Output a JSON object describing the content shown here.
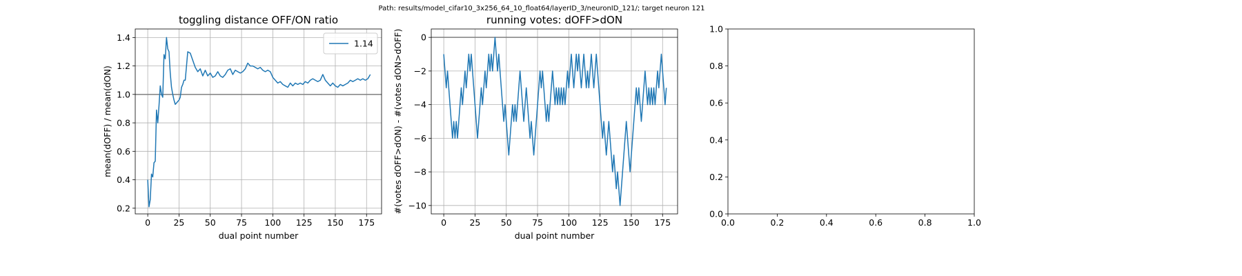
{
  "suptitle": "Path: results/model_cifar10_3x256_64_10_float64/layerID_3/neuronID_121/; target neuron 121",
  "chart_data": [
    {
      "type": "line",
      "title": "toggling distance OFF/ON ratio",
      "xlabel": "dual point number",
      "ylabel": "mean(dOFF) / mean(dON)",
      "xlim": [
        -10,
        187
      ],
      "ylim": [
        0.16,
        1.46
      ],
      "xticks": [
        0,
        25,
        50,
        75,
        100,
        125,
        150,
        175
      ],
      "yticks": [
        0.2,
        0.4,
        0.6,
        0.8,
        1.0,
        1.2,
        1.4
      ],
      "ytick_labels": [
        "0.2",
        "0.4",
        "0.6",
        "0.8",
        "1.0",
        "1.2",
        "1.4"
      ],
      "grid": true,
      "hline": 1.0,
      "legend": {
        "position": "top-right",
        "entries": [
          "1.14"
        ]
      },
      "color": "#1f77b4",
      "series": [
        {
          "name": "1.14",
          "x": [
            0,
            1,
            2,
            3,
            4,
            5,
            6,
            7,
            8,
            9,
            10,
            11,
            12,
            13,
            14,
            15,
            16,
            17,
            18,
            19,
            20,
            21,
            22,
            23,
            24,
            25,
            26,
            27,
            28,
            29,
            30,
            32,
            34,
            36,
            38,
            40,
            42,
            44,
            46,
            48,
            50,
            52,
            54,
            56,
            58,
            60,
            62,
            64,
            66,
            68,
            70,
            72,
            74,
            76,
            78,
            80,
            82,
            84,
            86,
            88,
            90,
            92,
            94,
            96,
            98,
            100,
            102,
            104,
            106,
            108,
            110,
            112,
            114,
            116,
            118,
            120,
            122,
            124,
            126,
            128,
            130,
            132,
            134,
            136,
            138,
            140,
            142,
            144,
            146,
            148,
            150,
            152,
            154,
            156,
            158,
            160,
            162,
            164,
            166,
            168,
            170,
            172,
            174,
            176,
            178
          ],
          "y": [
            0.4,
            0.21,
            0.26,
            0.44,
            0.42,
            0.52,
            0.53,
            0.89,
            0.8,
            0.92,
            1.06,
            1.0,
            0.98,
            1.28,
            1.25,
            1.4,
            1.32,
            1.3,
            1.15,
            1.05,
            1.0,
            0.96,
            0.93,
            0.94,
            0.95,
            0.96,
            0.98,
            1.05,
            1.07,
            1.1,
            1.1,
            1.3,
            1.29,
            1.24,
            1.19,
            1.16,
            1.18,
            1.13,
            1.17,
            1.13,
            1.15,
            1.12,
            1.13,
            1.16,
            1.13,
            1.12,
            1.14,
            1.17,
            1.18,
            1.14,
            1.17,
            1.16,
            1.15,
            1.16,
            1.18,
            1.22,
            1.2,
            1.2,
            1.19,
            1.18,
            1.19,
            1.17,
            1.16,
            1.17,
            1.16,
            1.12,
            1.1,
            1.08,
            1.09,
            1.07,
            1.06,
            1.05,
            1.08,
            1.06,
            1.08,
            1.07,
            1.08,
            1.07,
            1.09,
            1.08,
            1.1,
            1.11,
            1.1,
            1.09,
            1.1,
            1.14,
            1.1,
            1.08,
            1.06,
            1.08,
            1.06,
            1.05,
            1.07,
            1.06,
            1.07,
            1.08,
            1.1,
            1.09,
            1.1,
            1.11,
            1.1,
            1.11,
            1.1,
            1.11,
            1.14
          ]
        }
      ]
    },
    {
      "type": "line",
      "title": "running votes: dOFF>dON",
      "xlabel": "dual point number",
      "ylabel": "#(votes dOFF>dON) - #(votes dON>dOFF)",
      "xlim": [
        -10,
        187
      ],
      "ylim": [
        -10.5,
        0.5
      ],
      "xticks": [
        0,
        25,
        50,
        75,
        100,
        125,
        150,
        175
      ],
      "yticks": [
        0,
        -2,
        -4,
        -6,
        -8,
        -10
      ],
      "ytick_labels": [
        "0",
        "−2",
        "−4",
        "−6",
        "−8",
        "−10"
      ],
      "grid": true,
      "hline": 0,
      "color": "#1f77b4",
      "series": [
        {
          "x": [
            0,
            1,
            2,
            3,
            4,
            5,
            6,
            7,
            8,
            9,
            10,
            11,
            12,
            13,
            14,
            15,
            16,
            17,
            18,
            19,
            20,
            21,
            22,
            23,
            24,
            25,
            26,
            27,
            28,
            29,
            30,
            31,
            32,
            33,
            34,
            35,
            36,
            37,
            38,
            39,
            40,
            41,
            42,
            43,
            44,
            45,
            46,
            47,
            48,
            49,
            50,
            51,
            52,
            53,
            54,
            55,
            56,
            57,
            58,
            59,
            60,
            61,
            62,
            63,
            64,
            65,
            66,
            67,
            68,
            69,
            70,
            71,
            72,
            73,
            74,
            75,
            76,
            77,
            78,
            79,
            80,
            81,
            82,
            83,
            84,
            85,
            86,
            87,
            88,
            89,
            90,
            91,
            92,
            93,
            94,
            95,
            96,
            97,
            98,
            99,
            100,
            101,
            102,
            103,
            104,
            105,
            106,
            107,
            108,
            109,
            110,
            111,
            112,
            113,
            114,
            115,
            116,
            117,
            118,
            119,
            120,
            121,
            122,
            123,
            124,
            125,
            126,
            127,
            128,
            129,
            130,
            131,
            132,
            133,
            134,
            135,
            136,
            137,
            138,
            139,
            140,
            141,
            142,
            143,
            144,
            145,
            146,
            147,
            148,
            149,
            150,
            151,
            152,
            153,
            154,
            155,
            156,
            157,
            158,
            159,
            160,
            161,
            162,
            163,
            164,
            165,
            166,
            167,
            168,
            169,
            170,
            171,
            172,
            173,
            174,
            175,
            176,
            177,
            178
          ],
          "y": [
            -1,
            -2,
            -3,
            -2,
            -3,
            -4,
            -5,
            -6,
            -5,
            -6,
            -5,
            -6,
            -5,
            -4,
            -3,
            -4,
            -3,
            -2,
            -3,
            -2,
            -1,
            -2,
            -1,
            -2,
            -3,
            -4,
            -5,
            -6,
            -5,
            -4,
            -3,
            -4,
            -3,
            -2,
            -3,
            -2,
            -1,
            -2,
            -1,
            -2,
            -1,
            0,
            -1,
            -2,
            -1,
            -2,
            -3,
            -4,
            -5,
            -4,
            -5,
            -6,
            -7,
            -6,
            -5,
            -4,
            -5,
            -4,
            -5,
            -4,
            -3,
            -2,
            -3,
            -4,
            -5,
            -4,
            -3,
            -4,
            -5,
            -6,
            -5,
            -6,
            -7,
            -6,
            -5,
            -4,
            -3,
            -2,
            -3,
            -2,
            -3,
            -4,
            -5,
            -4,
            -5,
            -4,
            -3,
            -2,
            -3,
            -4,
            -3,
            -4,
            -3,
            -4,
            -3,
            -4,
            -3,
            -4,
            -3,
            -2,
            -3,
            -2,
            -1,
            -2,
            -3,
            -2,
            -1,
            -2,
            -1,
            -2,
            -3,
            -2,
            -1,
            -2,
            -3,
            -2,
            -3,
            -2,
            -1,
            -2,
            -3,
            -2,
            -1,
            -2,
            -3,
            -4,
            -5,
            -6,
            -5,
            -6,
            -7,
            -6,
            -5,
            -6,
            -7,
            -8,
            -7,
            -8,
            -9,
            -8,
            -9,
            -10,
            -9,
            -8,
            -7,
            -6,
            -5,
            -6,
            -7,
            -8,
            -7,
            -6,
            -5,
            -4,
            -3,
            -4,
            -3,
            -4,
            -5,
            -4,
            -3,
            -2,
            -3,
            -4,
            -3,
            -4,
            -3,
            -4,
            -3,
            -4,
            -3,
            -2,
            -3,
            -2,
            -1,
            -2,
            -3,
            -4,
            -3
          ]
        }
      ]
    },
    {
      "type": "line",
      "title": "",
      "xlim": [
        0,
        1
      ],
      "ylim": [
        0,
        1
      ],
      "xticks": [
        0,
        0.2,
        0.4,
        0.6,
        0.8,
        1.0
      ],
      "yticks": [
        0,
        0.2,
        0.4,
        0.6,
        0.8,
        1.0
      ],
      "xtick_labels": [
        "0.0",
        "0.2",
        "0.4",
        "0.6",
        "0.8",
        "1.0"
      ],
      "ytick_labels": [
        "0.0",
        "0.2",
        "0.4",
        "0.6",
        "0.8",
        "1.0"
      ],
      "grid": false,
      "series": []
    }
  ]
}
